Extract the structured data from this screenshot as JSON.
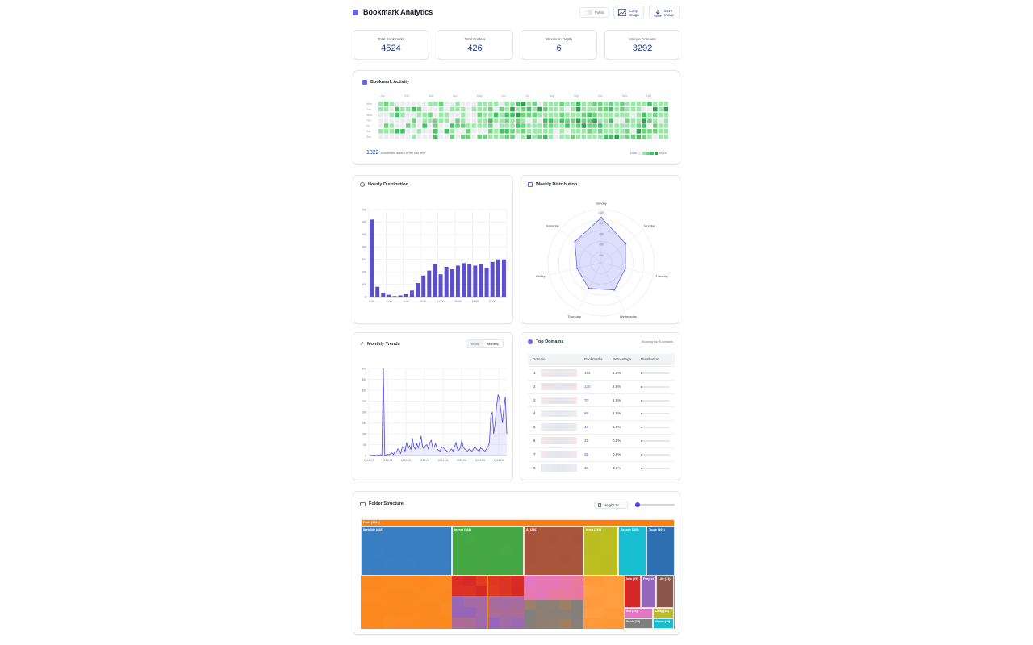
{
  "header": {
    "title": "Bookmark Analytics",
    "public_label": "Public",
    "copy_label_1": "Copy",
    "copy_label_2": "Image",
    "save_label_1": "Save",
    "save_label_2": "Image"
  },
  "stats": [
    {
      "label": "Total Bookmarks",
      "value": "4524"
    },
    {
      "label": "Total Folders",
      "value": "426"
    },
    {
      "label": "Maximum Depth",
      "value": "6"
    },
    {
      "label": "Unique Domains",
      "value": "3292"
    }
  ],
  "activity": {
    "title": "Bookmark Activity",
    "months": [
      "Jan",
      "Feb",
      "Mar",
      "Apr",
      "May",
      "Jun",
      "Jul",
      "Aug",
      "Sep",
      "Oct",
      "Nov",
      "Dec"
    ],
    "days": [
      "Mon",
      "Tue",
      "Wed",
      "Thu",
      "Fri",
      "Sat",
      "Sun"
    ],
    "count": "1822",
    "count_suffix": "bookmarks added in the last year",
    "less": "Less",
    "more": "More",
    "colors": [
      "#ebedf0",
      "#9be9a8",
      "#6dd47e",
      "#40c463",
      "#30a14e"
    ]
  },
  "hourly": {
    "title": "Hourly Distribution",
    "chart_data": {
      "type": "bar",
      "categories": [
        "0:00",
        "1:00",
        "2:00",
        "3:00",
        "4:00",
        "5:00",
        "6:00",
        "7:00",
        "8:00",
        "9:00",
        "10:00",
        "11:00",
        "12:00",
        "13:00",
        "14:00",
        "15:00",
        "16:00",
        "17:00",
        "18:00",
        "19:00",
        "20:00",
        "21:00",
        "22:00",
        "23:00"
      ],
      "tick_labels": [
        "0:00",
        "3:00",
        "6:00",
        "9:00",
        "12:00",
        "15:00",
        "18:00",
        "21:00"
      ],
      "values": [
        620,
        80,
        30,
        15,
        5,
        10,
        20,
        50,
        110,
        170,
        210,
        260,
        180,
        240,
        220,
        250,
        270,
        260,
        250,
        260,
        230,
        280,
        300,
        300
      ],
      "ylim": [
        0,
        700
      ],
      "yticks": [
        0,
        100,
        200,
        300,
        400,
        500,
        600,
        700
      ]
    }
  },
  "weekly": {
    "title": "Weekly Distribution",
    "chart_data": {
      "type": "radar",
      "categories": [
        "Sunday",
        "Monday",
        "Tuesday",
        "Wednesday",
        "Thursday",
        "Friday",
        "Saturday"
      ],
      "values": [
        1020,
        700,
        560,
        680,
        640,
        560,
        760
      ],
      "rmax": 1200,
      "rings": [
        "1,000",
        "800",
        "600",
        "400",
        "200"
      ]
    }
  },
  "monthly": {
    "title": "Monthly Trends",
    "tab_yearly": "Yearly",
    "tab_monthly": "Monthly",
    "chart_data": {
      "type": "area",
      "x_labels": [
        "2014-07",
        "2018-01",
        "2019-04",
        "2020-04",
        "2021-04",
        "2022-04",
        "2023-01",
        "2024-01"
      ],
      "values": [
        0,
        0,
        2,
        1,
        3,
        0,
        2,
        1,
        4,
        2,
        400,
        2,
        3,
        5,
        4,
        8,
        12,
        5,
        20,
        15,
        30,
        25,
        10,
        40,
        35,
        20,
        60,
        30,
        45,
        25,
        80,
        40,
        30,
        55,
        35,
        60,
        90,
        40,
        30,
        45,
        50,
        30,
        60,
        70,
        35,
        40,
        55,
        30,
        25,
        20,
        35,
        40,
        30,
        25,
        20,
        15,
        25,
        30,
        20,
        40,
        60,
        30,
        25,
        35,
        70,
        40,
        30,
        25,
        20,
        30,
        25,
        20,
        30,
        40,
        30,
        25,
        20,
        35,
        30,
        25,
        20,
        30,
        40,
        60,
        180,
        200,
        100,
        150,
        230,
        280,
        260,
        200,
        150,
        220,
        270,
        100
      ],
      "ylim": [
        0,
        400
      ],
      "yticks": [
        0,
        50,
        100,
        150,
        200,
        250,
        300,
        350,
        400
      ]
    }
  },
  "domains": {
    "title": "Top Domains",
    "subtitle": "Showing top 8 domains",
    "headers": [
      "Domain",
      "Bookmarks",
      "Percentage",
      "Distribution"
    ],
    "rows": [
      {
        "rank": "1",
        "count": "183",
        "pct": "4.0%",
        "frac": 0.04
      },
      {
        "rank": "2",
        "count": "130",
        "pct": "2.9%",
        "frac": 0.029
      },
      {
        "rank": "3",
        "count": "70",
        "pct": "1.5%",
        "frac": 0.015
      },
      {
        "rank": "4",
        "count": "66",
        "pct": "1.5%",
        "frac": 0.015
      },
      {
        "rank": "5",
        "count": "43",
        "pct": "1.0%",
        "frac": 0.01
      },
      {
        "rank": "6",
        "count": "41",
        "pct": "0.9%",
        "frac": 0.009
      },
      {
        "rank": "7",
        "count": "36",
        "pct": "0.8%",
        "frac": 0.008
      },
      {
        "rank": "8",
        "count": "34",
        "pct": "0.8%",
        "frac": 0.008
      }
    ]
  },
  "folders": {
    "title": "Folder Structure",
    "height_label": "Height 1x",
    "root_label": "Root (4524)",
    "groups": [
      {
        "label": "WebSite (853)",
        "color": "#3a7ec2"
      },
      {
        "label": "Invest (581)",
        "color": "#45a845"
      },
      {
        "label": "AI (296)",
        "color": "#a8553c"
      },
      {
        "label": "temp (244)",
        "color": "#bcbd22"
      },
      {
        "label": "Search (209)",
        "color": "#17becf"
      },
      {
        "label": "Tools (191)",
        "color": "#2e6fb0"
      },
      {
        "label": "Info (79)",
        "color": "#d62728"
      },
      {
        "label": "Project (73)",
        "color": "#9467bd"
      },
      {
        "label": "Life (71)",
        "color": "#8c564b"
      },
      {
        "label": "Ent (43)",
        "color": "#e377c2"
      },
      {
        "label": "Daily (38)",
        "color": "#bcbd22"
      },
      {
        "label": "Work (39)",
        "color": "#7f7f7f"
      },
      {
        "label": "Game (29)",
        "color": "#17becf"
      }
    ]
  }
}
